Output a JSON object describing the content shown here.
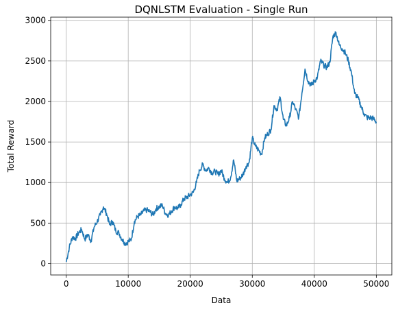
{
  "chart_data": {
    "type": "line",
    "title": "DQNLSTM Evaluation - Single Run",
    "xlabel": "Data",
    "ylabel": "Total Reward",
    "xlim": [
      -2500,
      52500
    ],
    "ylim": [
      -140,
      3040
    ],
    "xticks": [
      0,
      10000,
      20000,
      30000,
      40000,
      50000
    ],
    "yticks": [
      0,
      500,
      1000,
      1500,
      2000,
      2500,
      3000
    ],
    "grid": true,
    "legend": "none",
    "colors": {
      "line": "#1f77b4",
      "grid": "#b0b0b0"
    },
    "series": [
      {
        "x": [
          0,
          500,
          1000,
          1500,
          2000,
          2500,
          3000,
          3500,
          4000,
          4500,
          5000,
          5500,
          6000,
          6500,
          7000,
          7500,
          8000,
          8500,
          9000,
          9500,
          10000,
          10500,
          11000,
          11500,
          12000,
          12500,
          13000,
          13500,
          14000,
          14500,
          15000,
          15500,
          16000,
          16500,
          17000,
          17500,
          18000,
          18500,
          19000,
          19500,
          20000,
          20500,
          21000,
          21500,
          22000,
          22500,
          23000,
          23500,
          24000,
          24500,
          25000,
          25500,
          26000,
          26500,
          27000,
          27500,
          28000,
          28500,
          29000,
          29500,
          30000,
          30500,
          31000,
          31500,
          32000,
          32500,
          33000,
          33500,
          34000,
          34500,
          35000,
          35500,
          36000,
          36500,
          37000,
          37500,
          38000,
          38500,
          39000,
          39500,
          40000,
          40500,
          41000,
          41500,
          42000,
          42500,
          43000,
          43500,
          44000,
          44500,
          45000,
          45500,
          46000,
          46500,
          47000,
          47500,
          48000,
          48500,
          49000,
          49500,
          50000
        ],
        "y": [
          20,
          200,
          330,
          310,
          380,
          420,
          300,
          360,
          280,
          450,
          520,
          600,
          700,
          620,
          480,
          520,
          400,
          380,
          300,
          250,
          270,
          300,
          520,
          580,
          600,
          650,
          660,
          640,
          600,
          680,
          700,
          720,
          620,
          600,
          650,
          700,
          680,
          730,
          800,
          820,
          850,
          880,
          1000,
          1150,
          1220,
          1150,
          1180,
          1120,
          1140,
          1100,
          1150,
          1050,
          1000,
          1060,
          1280,
          1020,
          1050,
          1100,
          1200,
          1250,
          1550,
          1450,
          1400,
          1350,
          1550,
          1600,
          1650,
          1950,
          1900,
          2050,
          1780,
          1700,
          1800,
          2000,
          1900,
          1800,
          2100,
          2400,
          2250,
          2200,
          2250,
          2300,
          2500,
          2450,
          2420,
          2480,
          2800,
          2850,
          2700,
          2650,
          2600,
          2500,
          2350,
          2100,
          2050,
          1950,
          1850,
          1800,
          1800,
          1790,
          1750
        ]
      }
    ]
  }
}
